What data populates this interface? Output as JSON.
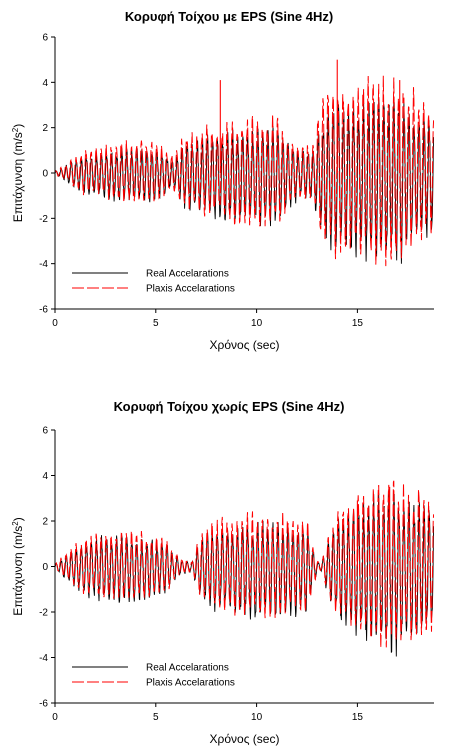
{
  "chart_data": [
    {
      "type": "line",
      "title": "Κορυφή Τοίχου με EPS (Sine 4Hz)",
      "xlabel": "Χρόνος (sec)",
      "ylabel": "Επιτάχυνση (m/s²)",
      "ylabel_main": "Επιτάχυνση (m/s",
      "ylabel_sup": "2",
      "ylabel_close": ")",
      "xlim": [
        0,
        18.8
      ],
      "ylim": [
        -6,
        6
      ],
      "xticks": [
        0,
        5,
        10,
        15
      ],
      "yticks": [
        -6,
        -4,
        -2,
        0,
        2,
        4,
        6
      ],
      "xtick_labels": [
        "0",
        "5",
        "10",
        "15"
      ],
      "ytick_labels": [
        "-6",
        "-4",
        "-2",
        "0",
        "2",
        "4",
        "6"
      ],
      "legend_position": "bottom-left",
      "grid": false,
      "signal": {
        "frequency_hz": 4,
        "sample_step_sec": 0.0208,
        "envelope_time_sec": [
          0,
          0.3,
          1.5,
          3.0,
          5.0,
          5.8,
          6.0,
          6.5,
          7.0,
          7.5,
          9.0,
          11.0,
          11.7,
          12.2,
          12.8,
          13.0,
          13.3,
          14.0,
          15.0,
          16.0,
          17.0,
          18.0,
          18.8
        ],
        "envelope_accel": [
          0.05,
          0.2,
          0.8,
          1.0,
          1.1,
          0.6,
          0.7,
          1.4,
          1.3,
          1.6,
          1.8,
          1.9,
          1.2,
          0.9,
          1.0,
          1.8,
          2.6,
          2.9,
          3.0,
          3.2,
          3.3,
          2.5,
          2.2
        ]
      },
      "series": [
        {
          "name": "Real Accelarations",
          "color": "#000000",
          "dash": "solid",
          "scale": 1.0,
          "phase": 0.0,
          "offset": -0.3
        },
        {
          "name": "Plaxis Accelarations",
          "color": "#ff0000",
          "dash": "long-dash",
          "scale": 1.15,
          "phase": 0.6,
          "offset": 0.15
        }
      ],
      "annotations_peaks": {
        "time_sec": [
          8.2,
          14.0,
          17.1
        ],
        "accel": [
          4.1,
          5.0,
          4.1
        ]
      }
    },
    {
      "type": "line",
      "title": "Κορυφή Τοίχου χωρίς EPS (Sine 4Hz)",
      "xlabel": "Χρόνος (sec)",
      "ylabel": "Επιτάχυνση (m/s²)",
      "ylabel_main": "Επιτάχυνση (m/s",
      "ylabel_sup": "2",
      "ylabel_close": ")",
      "xlim": [
        0,
        18.8
      ],
      "ylim": [
        -6,
        6
      ],
      "xticks": [
        0,
        5,
        10,
        15
      ],
      "yticks": [
        -6,
        -4,
        -2,
        0,
        2,
        4,
        6
      ],
      "xtick_labels": [
        "0",
        "5",
        "10",
        "15"
      ],
      "ytick_labels": [
        "-6",
        "-4",
        "-2",
        "0",
        "2",
        "4",
        "6"
      ],
      "legend_position": "bottom-left",
      "grid": false,
      "signal": {
        "frequency_hz": 4,
        "sample_step_sec": 0.0208,
        "envelope_time_sec": [
          0,
          0.4,
          1.5,
          2.5,
          4.0,
          5.5,
          6.2,
          6.8,
          7.2,
          8.0,
          9.5,
          11.0,
          12.5,
          13.0,
          13.2,
          13.8,
          14.5,
          15.5,
          16.5,
          17.5,
          18.8
        ],
        "envelope_accel": [
          0.1,
          0.4,
          1.1,
          1.3,
          1.3,
          1.0,
          0.3,
          0.2,
          1.2,
          1.7,
          1.9,
          1.9,
          1.8,
          0.2,
          0.15,
          1.8,
          2.3,
          2.8,
          3.2,
          3.0,
          2.4
        ]
      },
      "series": [
        {
          "name": "Real Accelarations",
          "color": "#000000",
          "dash": "solid",
          "scale": 1.0,
          "phase": 0.0,
          "offset": -0.3
        },
        {
          "name": "Plaxis Accelarations",
          "color": "#ff0000",
          "dash": "long-dash",
          "scale": 1.05,
          "phase": 0.5,
          "offset": 0.1
        }
      ],
      "annotations_peaks": {
        "time_sec": [
          15.0,
          16.6
        ],
        "accel": [
          2.9,
          3.5
        ]
      }
    }
  ]
}
